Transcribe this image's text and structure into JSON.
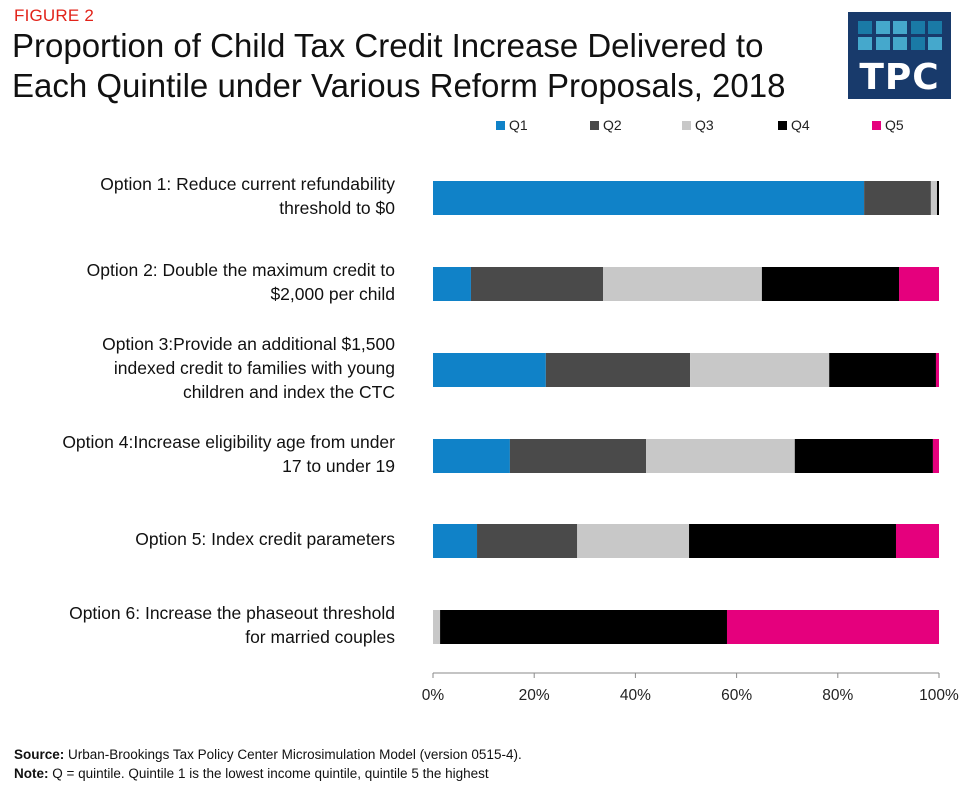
{
  "figure_label": "FIGURE 2",
  "title": "Proportion of Child Tax Credit Increase Delivered to Each Quintile under Various Reform Proposals, 2018",
  "logo": {
    "text": "TPC",
    "cell_colors": [
      "#1a7aa6",
      "#45a8cc",
      "#45a8cc",
      "#1a7aa6",
      "#1a7aa6",
      "#45a8cc",
      "#45a8cc",
      "#45a8cc",
      "#1a7aa6",
      "#45a8cc"
    ],
    "background": "#183a6b"
  },
  "footer": {
    "source_label": "Source:",
    "source_text": " Urban-Brookings Tax Policy Center Microsimulation Model (version 0515-4).",
    "note_label": "Note:",
    "note_text": " Q = quintile. Quintile 1 is the lowest income quintile, quintile 5 the highest"
  },
  "chart_data": {
    "type": "bar",
    "orientation": "horizontal",
    "stacked": true,
    "title": "Proportion of Child Tax Credit Increase Delivered to Each Quintile under Various Reform Proposals, 2018",
    "xlabel": "",
    "ylabel": "",
    "xlim": [
      0,
      100
    ],
    "x_ticks": [
      "0%",
      "20%",
      "40%",
      "60%",
      "80%",
      "100%"
    ],
    "grid": false,
    "legend_position": "top",
    "categories": [
      "Option 1: Reduce current refundability\nthreshold to $0",
      "Option 2: Double the maximum credit to\n$2,000 per child",
      "Option 3:Provide an additional $1,500\nindexed credit to families with young\nchildren and index the CTC",
      "Option 4:Increase eligibility age from under\n17 to under 19",
      "Option 5: Index credit parameters",
      "Option 6: Increase the phaseout threshold\nfor married couples"
    ],
    "series": [
      {
        "name": "Q1",
        "color": "#1082c8",
        "values": [
          85.2,
          7.5,
          22.3,
          15.2,
          8.7,
          0.0
        ]
      },
      {
        "name": "Q2",
        "color": "#4a4a4a",
        "values": [
          13.2,
          26.1,
          28.5,
          26.9,
          19.8,
          0.0
        ]
      },
      {
        "name": "Q3",
        "color": "#c8c8c8",
        "values": [
          1.2,
          31.4,
          27.5,
          29.4,
          22.1,
          1.4
        ]
      },
      {
        "name": "Q4",
        "color": "#000000",
        "values": [
          0.4,
          27.1,
          21.1,
          27.3,
          40.9,
          56.7
        ]
      },
      {
        "name": "Q5",
        "color": "#e5007d",
        "values": [
          0.0,
          7.9,
          0.6,
          1.2,
          8.5,
          41.9
        ]
      }
    ]
  }
}
